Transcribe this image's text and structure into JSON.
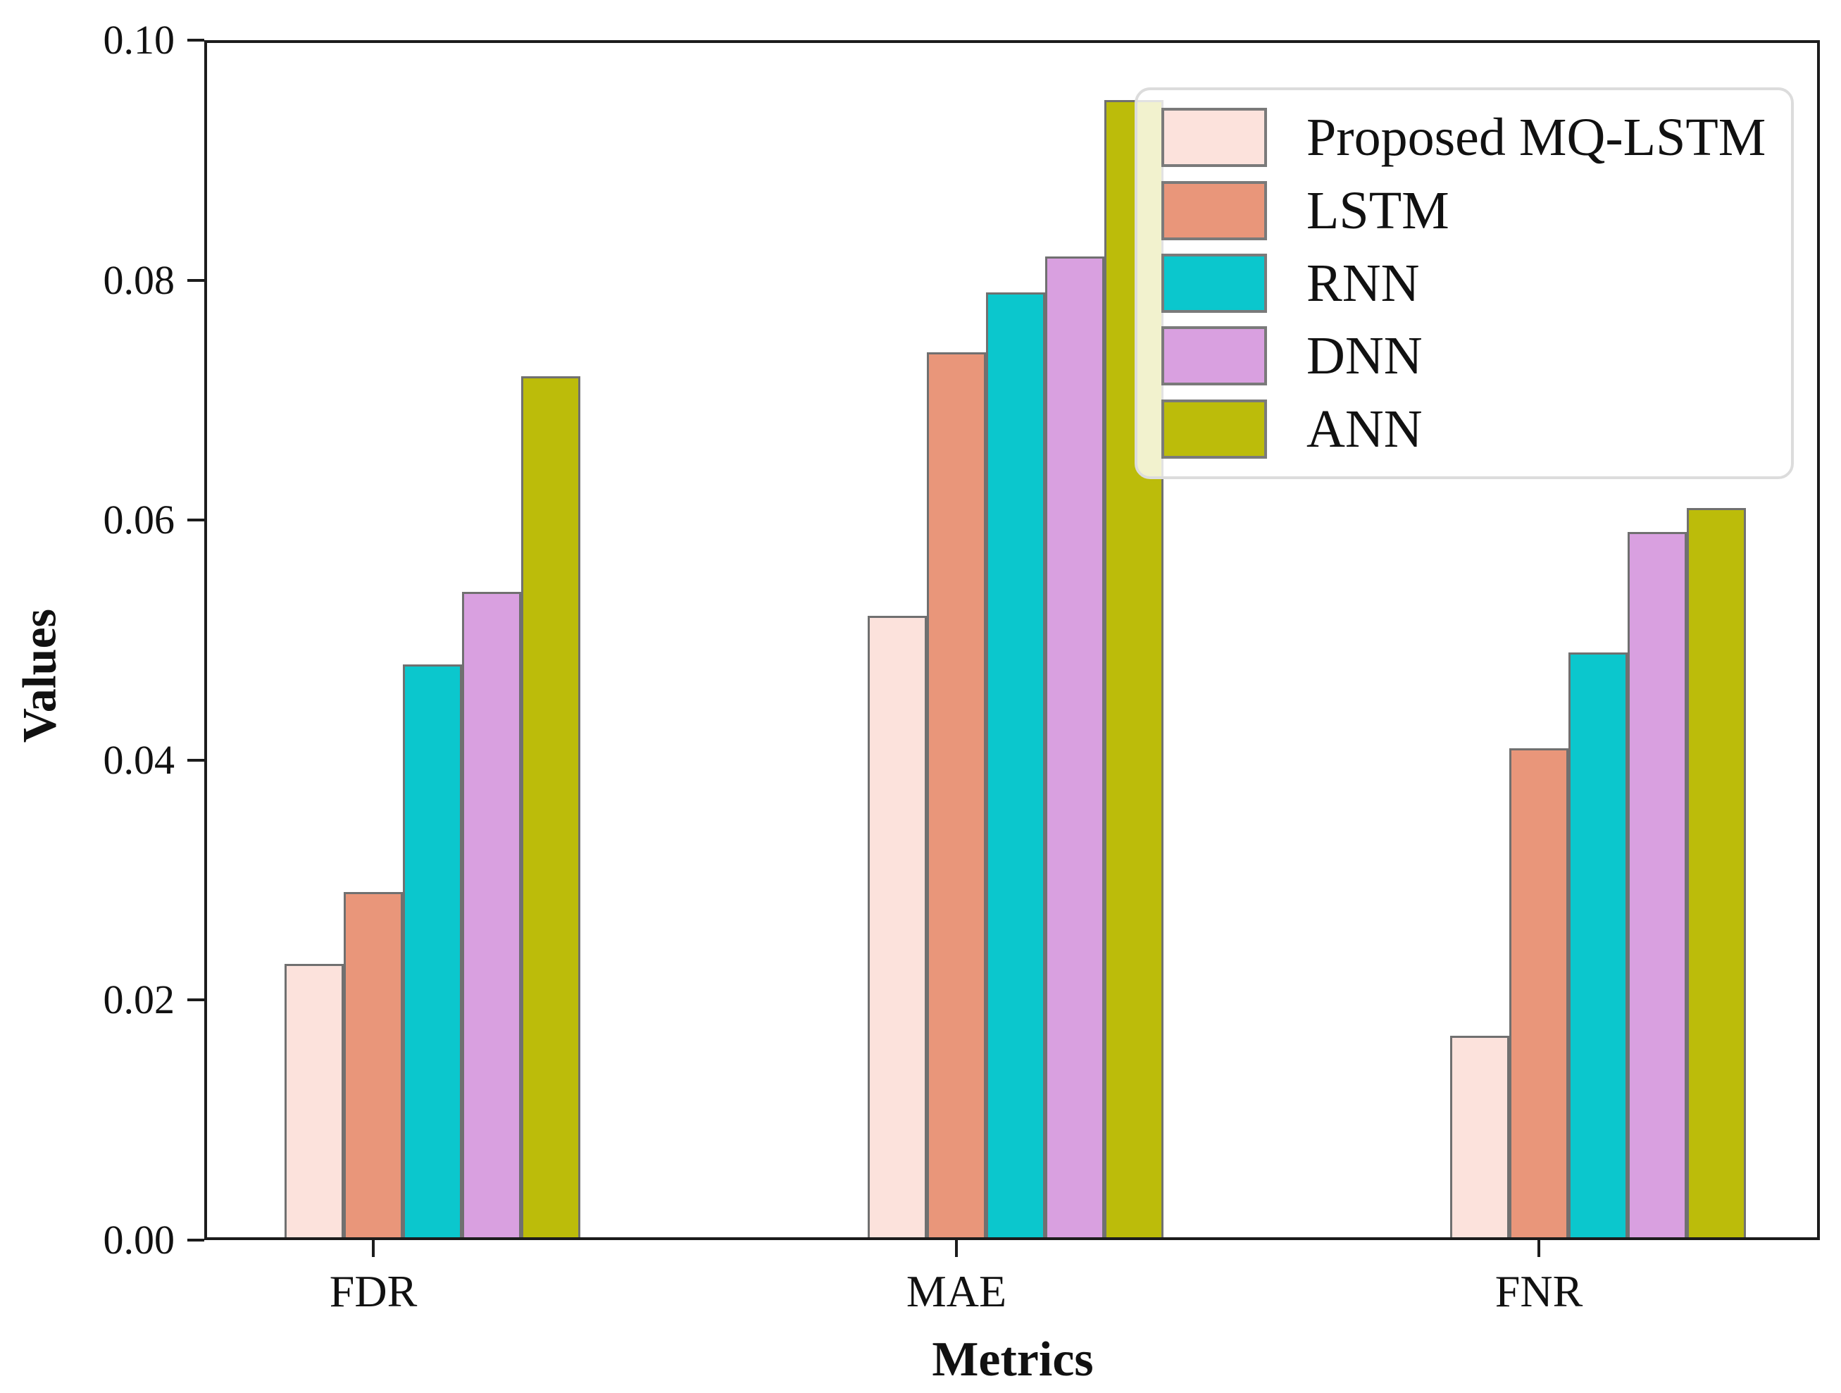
{
  "figure": {
    "background": "#ffffff",
    "axis_color": "#1c1c1c",
    "bar_edge_color": "#707070",
    "legend_border_color": "#dcdcdc",
    "legend_background": "rgba(255,255,255,0.8)"
  },
  "chart_data": {
    "type": "bar",
    "title": "",
    "xlabel": "Metrics",
    "ylabel": "Values",
    "categories": [
      "FDR",
      "MAE",
      "FNR"
    ],
    "series": [
      {
        "name": "Proposed MQ-LSTM",
        "color": "#fce2dc",
        "values": [
          0.023,
          0.052,
          0.017
        ]
      },
      {
        "name": "LSTM",
        "color": "#e9967a",
        "values": [
          0.029,
          0.074,
          0.041
        ]
      },
      {
        "name": "RNN",
        "color": "#0bc7cd",
        "values": [
          0.048,
          0.079,
          0.049
        ]
      },
      {
        "name": "DNN",
        "color": "#d9a0e0",
        "values": [
          0.054,
          0.082,
          0.059
        ]
      },
      {
        "name": "ANN",
        "color": "#bcbc0a",
        "values": [
          0.072,
          0.095,
          0.061
        ]
      }
    ],
    "ylim": [
      0.0,
      0.1
    ],
    "ytick_labels": [
      "0.00",
      "0.02",
      "0.04",
      "0.06",
      "0.08",
      "0.10"
    ],
    "ytick_values": [
      0.0,
      0.02,
      0.04,
      0.06,
      0.08,
      0.1
    ],
    "grid": false,
    "legend_position": "upper right"
  }
}
